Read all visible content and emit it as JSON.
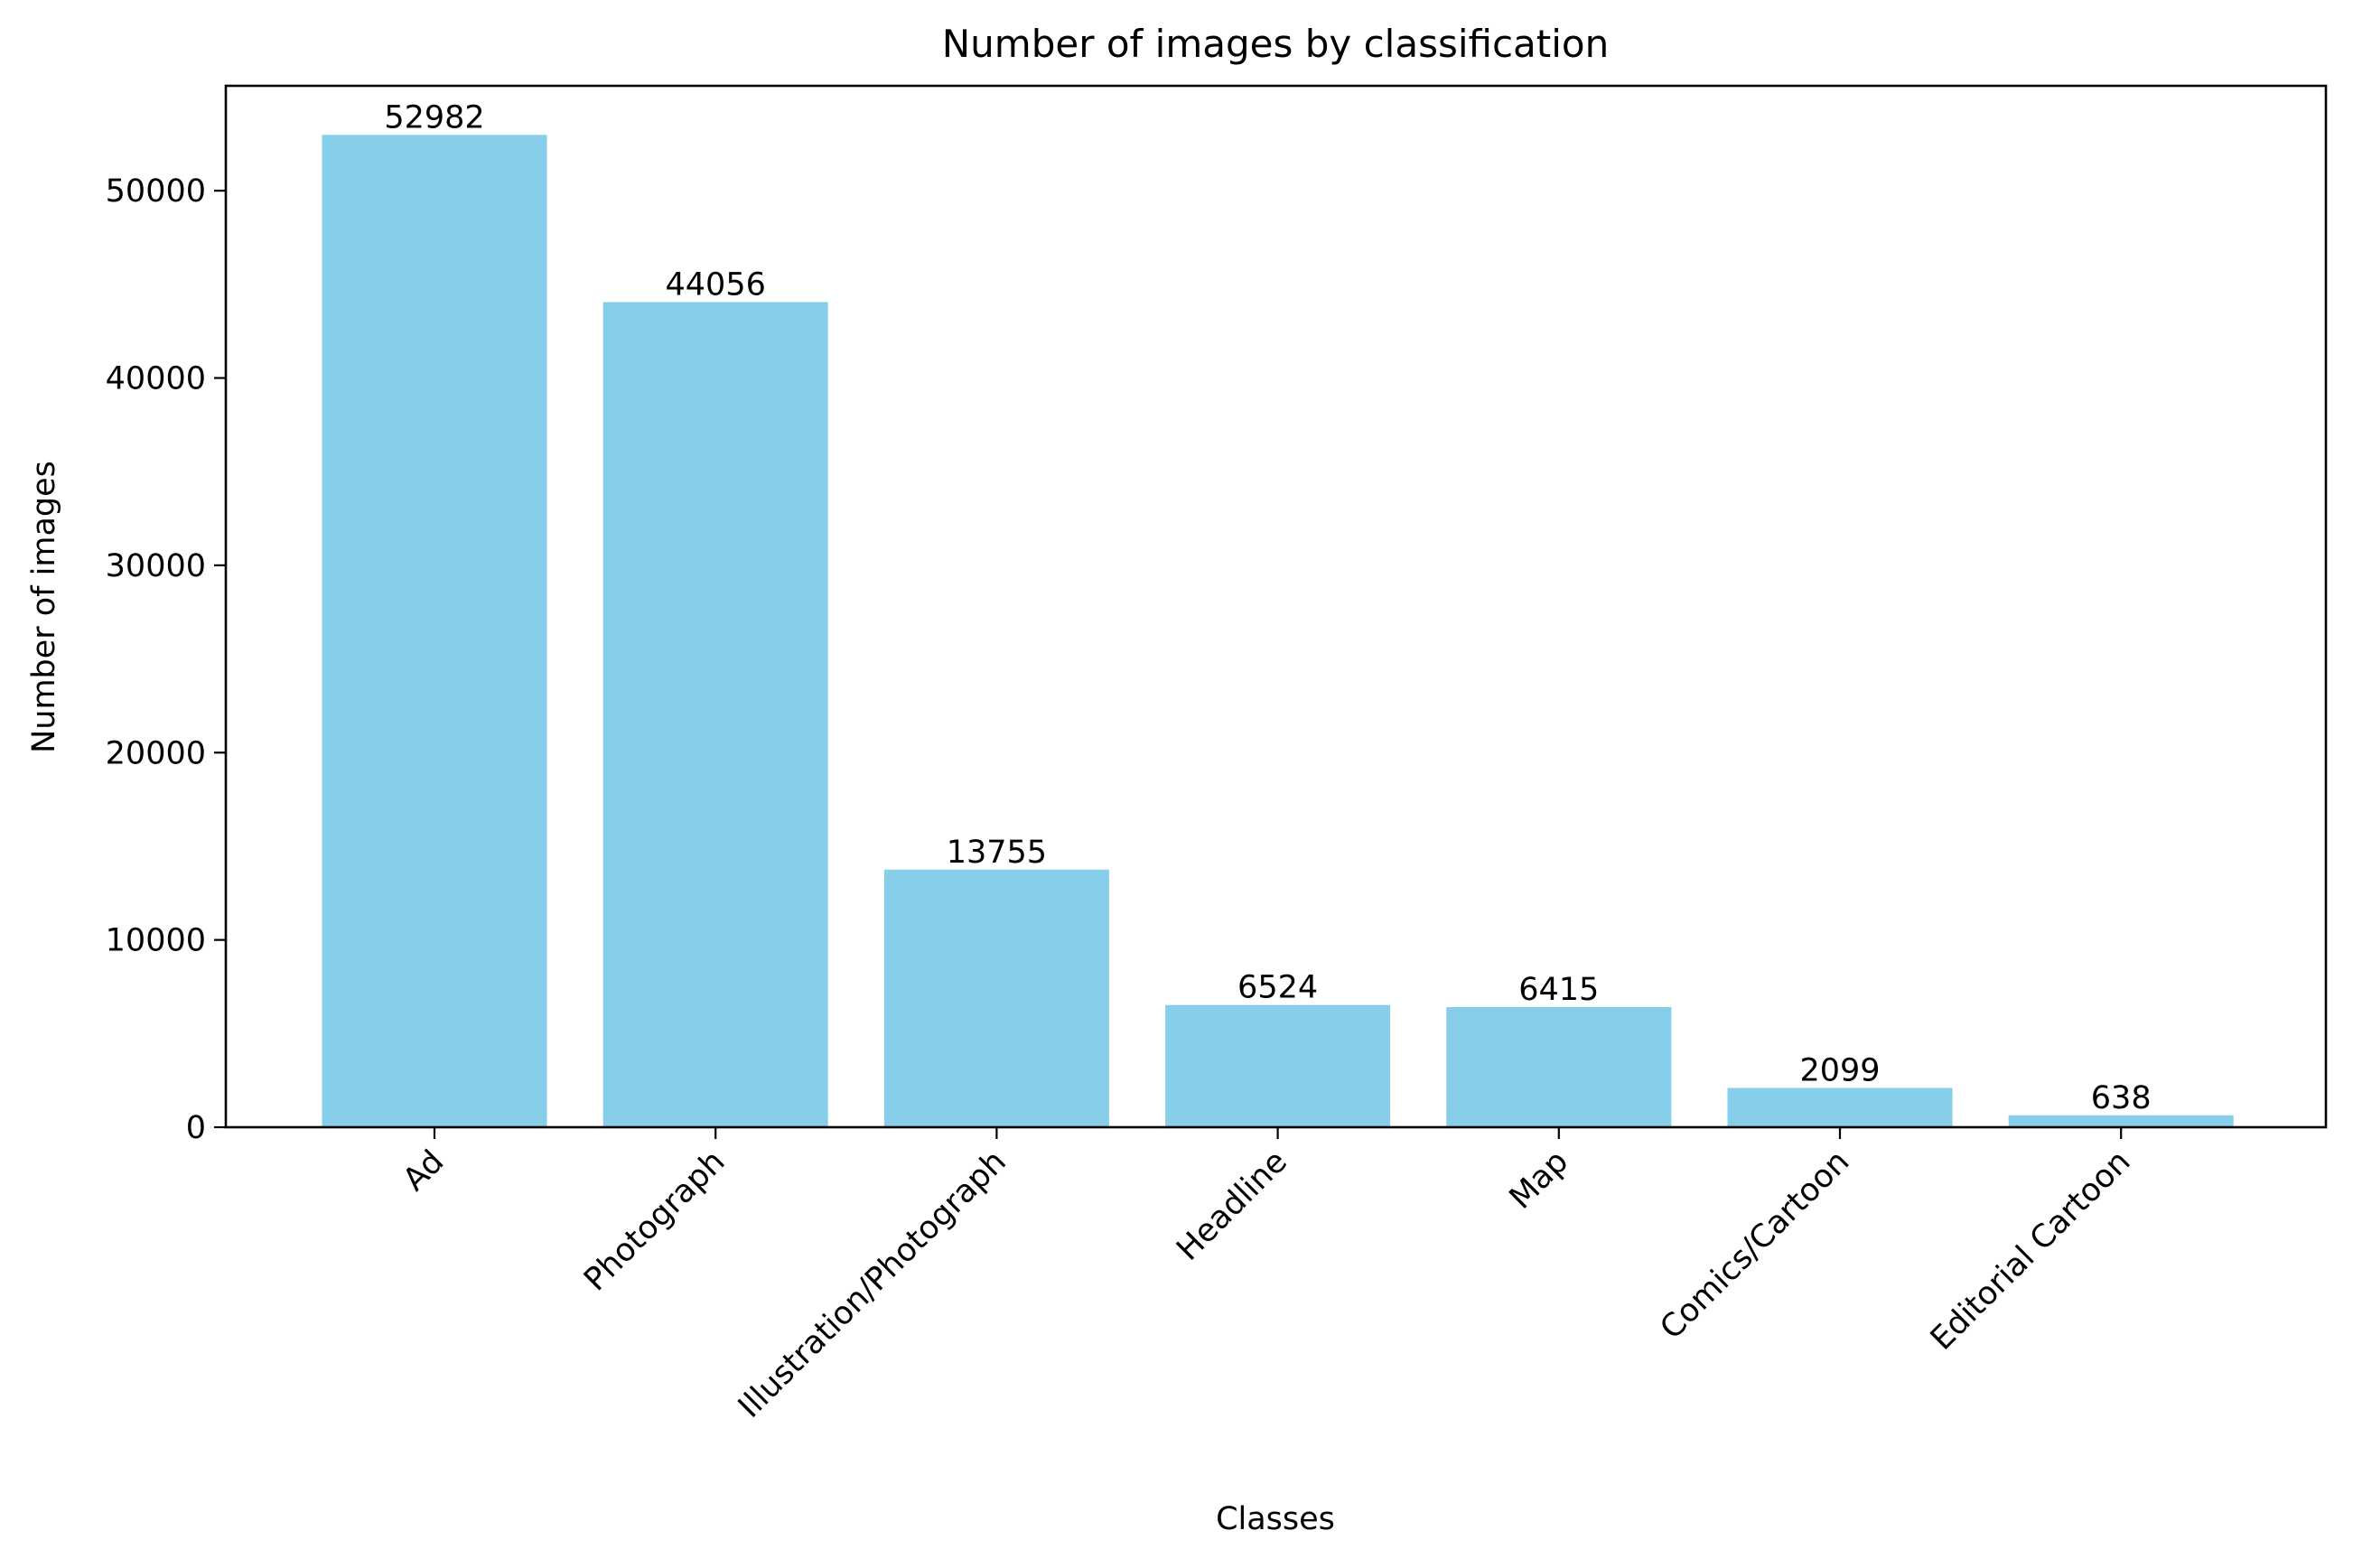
{
  "chart_data": {
    "type": "bar",
    "title": "Number of images by classification",
    "xlabel": "Classes",
    "ylabel": "Number of images",
    "categories": [
      "Ad",
      "Photograph",
      "Illustration/Photograph",
      "Headline",
      "Map",
      "Comics/Cartoon",
      "Editorial Cartoon"
    ],
    "values": [
      52982,
      44056,
      13755,
      6524,
      6415,
      2099,
      638
    ],
    "data_labels": [
      "52982",
      "44056",
      "13755",
      "6524",
      "6415",
      "2099",
      "638"
    ],
    "ylim": [
      0,
      55600
    ],
    "yticks": [
      0,
      10000,
      20000,
      30000,
      40000,
      50000
    ],
    "ytick_labels": [
      "0",
      "10000",
      "20000",
      "30000",
      "40000",
      "50000"
    ],
    "grid": false,
    "legend": "none",
    "bar_color": "#87CEEB"
  }
}
